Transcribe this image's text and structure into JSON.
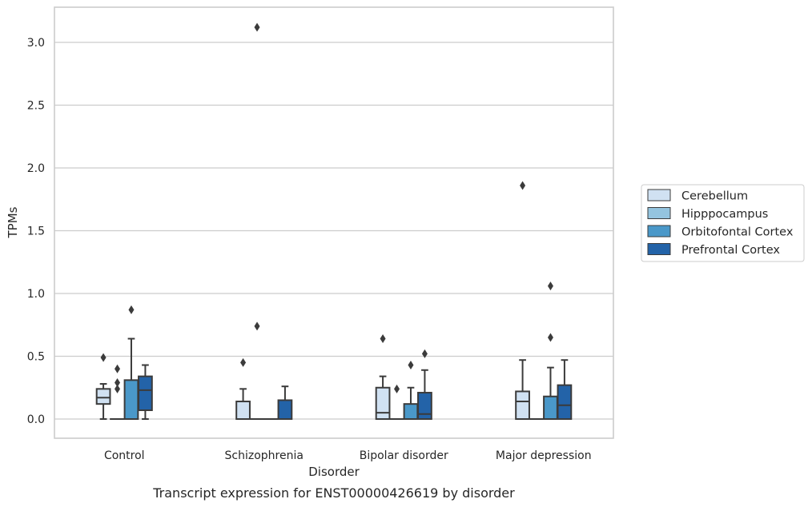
{
  "chart_data": {
    "type": "boxplot",
    "caption": "Transcript expression for ENST00000426619 by disorder",
    "xlabel": "Disorder",
    "ylabel": "TPMs",
    "ylim": [
      -0.15,
      3.28
    ],
    "yticks": [
      "0.0",
      "0.5",
      "1.0",
      "1.5",
      "2.0",
      "2.5",
      "3.0"
    ],
    "grid": true,
    "legend_position": "right",
    "categories": [
      "Control",
      "Schizophrenia",
      "Bipolar disorder",
      "Major depression"
    ],
    "series": [
      {
        "name": "Cerebellum",
        "color": "#d0e1f2",
        "boxes": [
          {
            "whislo": 0.0,
            "q1": 0.12,
            "med": 0.17,
            "q3": 0.24,
            "whishi": 0.28,
            "fliers": [
              0.49
            ]
          },
          {
            "whislo": 0.0,
            "q1": 0.0,
            "med": 0.0,
            "q3": 0.14,
            "whishi": 0.24,
            "fliers": [
              0.45
            ]
          },
          {
            "whislo": 0.0,
            "q1": 0.0,
            "med": 0.05,
            "q3": 0.25,
            "whishi": 0.34,
            "fliers": [
              0.64
            ]
          },
          {
            "whislo": 0.0,
            "q1": 0.0,
            "med": 0.14,
            "q3": 0.22,
            "whishi": 0.47,
            "fliers": [
              1.86
            ]
          }
        ]
      },
      {
        "name": "Hipppocampus",
        "color": "#94c4df",
        "boxes": [
          {
            "whislo": 0.0,
            "q1": 0.0,
            "med": 0.0,
            "q3": 0.0,
            "whishi": 0.0,
            "fliers": [
              0.24,
              0.29,
              0.4
            ]
          },
          {
            "whislo": 0.0,
            "q1": 0.0,
            "med": 0.0,
            "q3": 0.0,
            "whishi": 0.0,
            "fliers": [
              0.74,
              3.12
            ]
          },
          {
            "whislo": 0.0,
            "q1": 0.0,
            "med": 0.0,
            "q3": 0.0,
            "whishi": 0.0,
            "fliers": [
              0.24
            ]
          },
          {
            "whislo": 0.0,
            "q1": 0.0,
            "med": 0.0,
            "q3": 0.0,
            "whishi": 0.0,
            "fliers": []
          }
        ]
      },
      {
        "name": "Orbitofontal Cortex",
        "color": "#4a98c9",
        "boxes": [
          {
            "whislo": 0.0,
            "q1": 0.0,
            "med": 0.0,
            "q3": 0.31,
            "whishi": 0.64,
            "fliers": [
              0.87
            ]
          },
          {
            "whislo": 0.0,
            "q1": 0.0,
            "med": 0.0,
            "q3": 0.0,
            "whishi": 0.0,
            "fliers": []
          },
          {
            "whislo": 0.0,
            "q1": 0.0,
            "med": 0.0,
            "q3": 0.12,
            "whishi": 0.25,
            "fliers": [
              0.43
            ]
          },
          {
            "whislo": 0.0,
            "q1": 0.0,
            "med": 0.0,
            "q3": 0.18,
            "whishi": 0.41,
            "fliers": [
              0.65,
              1.06
            ]
          }
        ]
      },
      {
        "name": "Prefrontal Cortex",
        "color": "#2363a8",
        "boxes": [
          {
            "whislo": 0.0,
            "q1": 0.07,
            "med": 0.23,
            "q3": 0.34,
            "whishi": 0.43,
            "fliers": []
          },
          {
            "whislo": 0.0,
            "q1": 0.0,
            "med": 0.0,
            "q3": 0.15,
            "whishi": 0.26,
            "fliers": []
          },
          {
            "whislo": 0.0,
            "q1": 0.0,
            "med": 0.04,
            "q3": 0.21,
            "whishi": 0.39,
            "fliers": [
              0.52
            ]
          },
          {
            "whislo": 0.0,
            "q1": 0.0,
            "med": 0.11,
            "q3": 0.27,
            "whishi": 0.47,
            "fliers": []
          }
        ]
      }
    ]
  }
}
